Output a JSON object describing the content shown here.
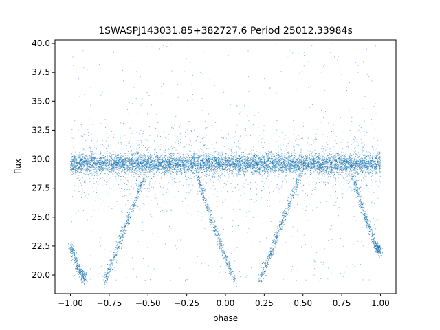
{
  "chart_data": {
    "type": "scatter",
    "title": "1SWASPJ143031.85+382727.6 Period 25012.33984s",
    "xlabel": "phase",
    "ylabel": "flux",
    "xlim": [
      -1.1,
      1.1
    ],
    "ylim": [
      18.4,
      40.3
    ],
    "xticks": [
      -1.0,
      -0.75,
      -0.5,
      -0.25,
      0.0,
      0.25,
      0.5,
      0.75,
      1.0
    ],
    "xtick_labels": [
      "−1.00",
      "−0.75",
      "−0.50",
      "−0.25",
      "0.00",
      "0.25",
      "0.50",
      "0.75",
      "1.00"
    ],
    "yticks": [
      20.0,
      22.5,
      25.0,
      27.5,
      30.0,
      32.5,
      35.0,
      37.5,
      40.0
    ],
    "ytick_labels": [
      "20.0",
      "22.5",
      "25.0",
      "27.5",
      "30.0",
      "32.5",
      "35.0",
      "37.5",
      "40.0"
    ],
    "grid": false,
    "legend": "none",
    "marker_color": "#1f77b4",
    "series": [
      {
        "baseline_band": {
          "x_range": [
            -1.0,
            1.0
          ],
          "y_center": 29.6,
          "y_halfwidth": 0.9
        },
        "eclipse_branches": [
          {
            "x": [
              -1.0,
              -0.95,
              -0.9
            ],
            "y": [
              22.5,
              20.6,
              19.5
            ]
          },
          {
            "x": [
              -0.78,
              -0.7,
              -0.62,
              -0.52
            ],
            "y": [
              19.5,
              22.2,
              25.1,
              28.6
            ]
          },
          {
            "x": [
              -0.18,
              -0.1,
              -0.02,
              0.06
            ],
            "y": [
              28.6,
              25.1,
              22.2,
              19.5
            ]
          },
          {
            "x": [
              0.22,
              0.3,
              0.38,
              0.48
            ],
            "y": [
              19.5,
              22.2,
              25.1,
              28.6
            ]
          },
          {
            "x": [
              0.82,
              0.9,
              0.97,
              1.0
            ],
            "y": [
              28.6,
              25.1,
              22.5,
              22.0
            ]
          }
        ],
        "outlier_range": [
          19.5,
          40.0
        ]
      }
    ]
  }
}
